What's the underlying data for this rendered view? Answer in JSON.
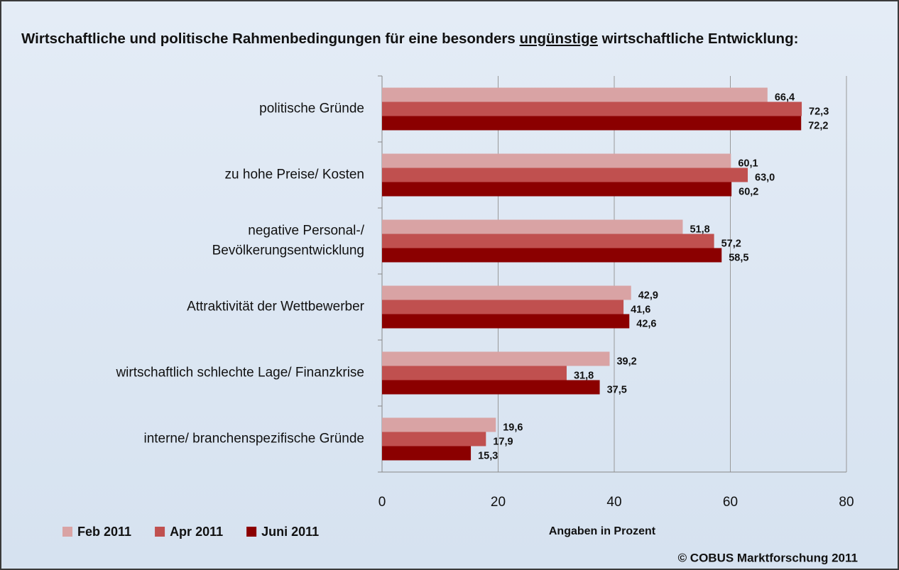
{
  "chart_data": {
    "type": "bar",
    "orientation": "horizontal",
    "title": [
      "Wirtschaftliche und politische Rahmenbedingungen für eine besonders ",
      "ungünstige",
      " wirtschaftliche Entwicklung:"
    ],
    "categories": [
      [
        "politische Gründe"
      ],
      [
        "zu hohe Preise/ Kosten"
      ],
      [
        "negative Personal-/",
        "Bevölkerungsentwicklung"
      ],
      [
        "Attraktivität der Wettbewerber"
      ],
      [
        "wirtschaftlich schlechte Lage/ Finanzkrise"
      ],
      [
        "interne/ branchenspezifische Gründe"
      ]
    ],
    "series": [
      {
        "name": "Feb 2011",
        "color": "#d9a3a4",
        "values": [
          66.4,
          60.1,
          51.8,
          42.9,
          39.2,
          19.6
        ],
        "value_labels": [
          "66,4",
          "60,1",
          "51,8",
          "42,9",
          "39,2",
          "19,6"
        ]
      },
      {
        "name": "Apr 2011",
        "color": "#c0504f",
        "values": [
          72.3,
          63.0,
          57.2,
          41.6,
          31.8,
          17.9
        ],
        "value_labels": [
          "72,3",
          "63,0",
          "57,2",
          "41,6",
          "31,8",
          "17,9"
        ]
      },
      {
        "name": "Juni 2011",
        "color": "#8b0000",
        "values": [
          72.2,
          60.2,
          58.5,
          42.6,
          37.5,
          15.3
        ],
        "value_labels": [
          "72,2",
          "60,2",
          "58,5",
          "42,6",
          "37,5",
          "15,3"
        ]
      }
    ],
    "xlim": [
      0,
      80
    ],
    "xticks": [
      0,
      20,
      40,
      60,
      80
    ],
    "grid": true,
    "xlabel": "Angaben in Prozent",
    "source": "© COBUS Marktforschung 2011",
    "legend": "bottom-left"
  }
}
